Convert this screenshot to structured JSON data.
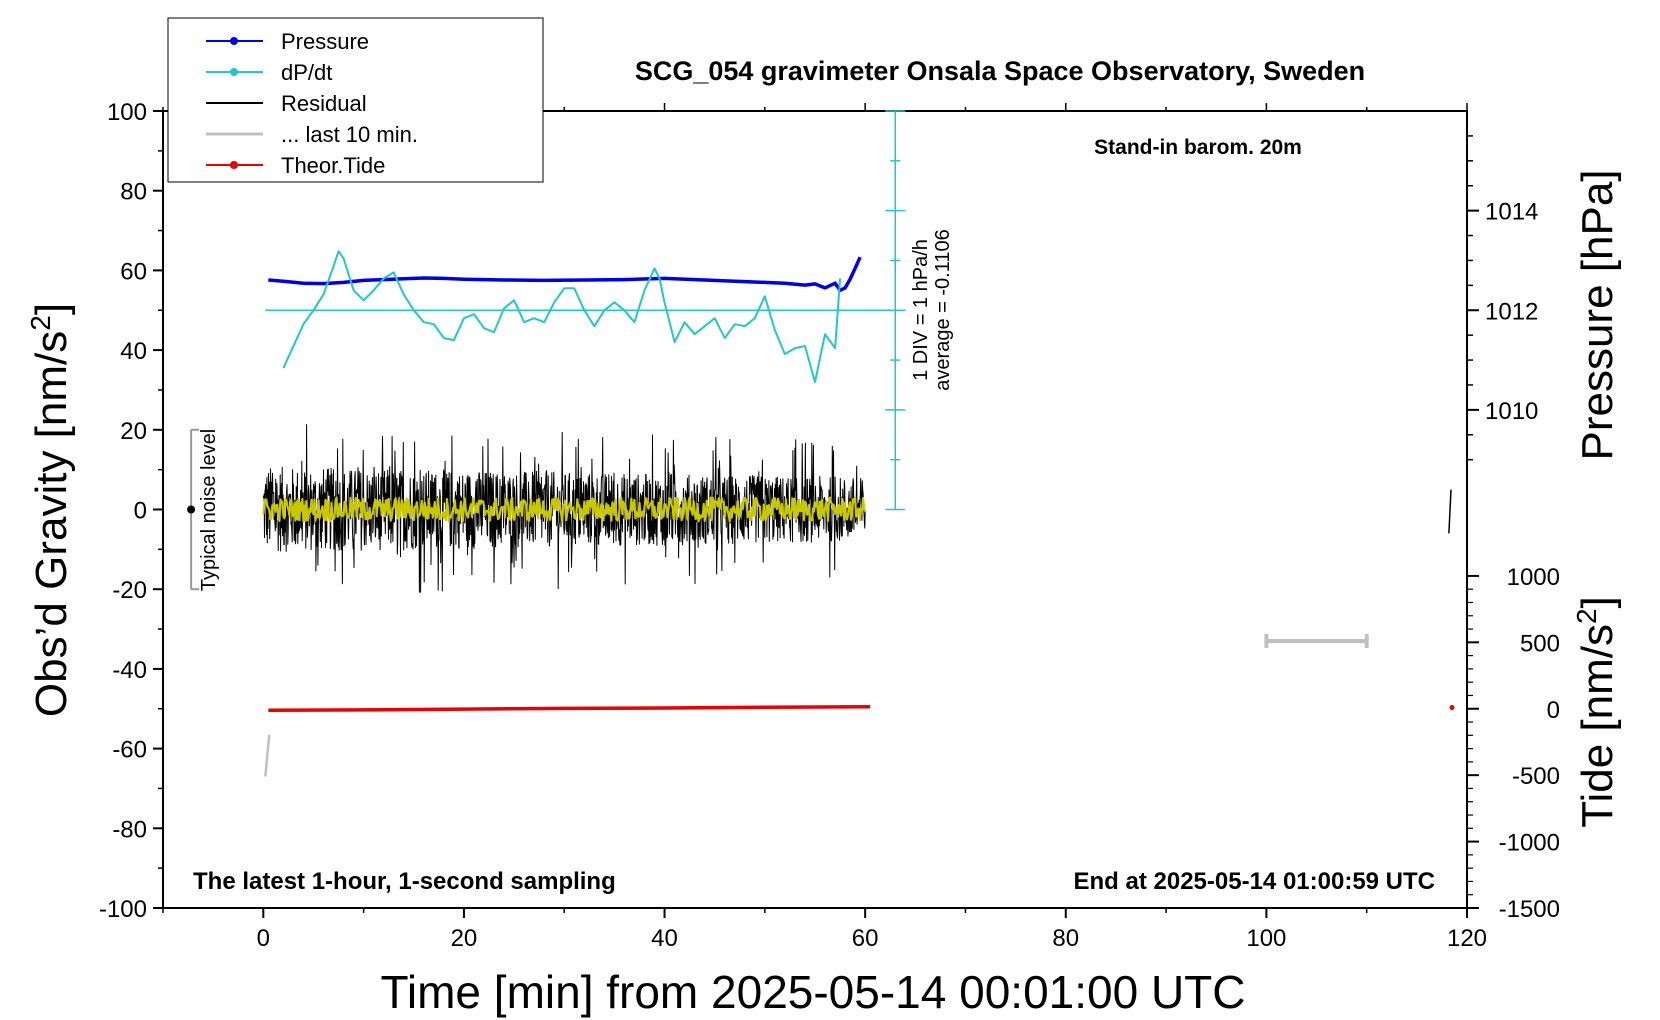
{
  "chart_data": {
    "type": "line",
    "title": "SCG_054 gravimeter Onsala Space Observatory, Sweden",
    "xlabel": "Time [min] from 2025-05-14 00:01:00 UTC",
    "ylabel_left": "Obs’d Gravity [nm/s",
    "ylabel_left_sup": "2",
    "ylabel_left_close": "]",
    "ylabel_pressure": "Pressure [hPa]",
    "ylabel_tide": "Tide [nm/s",
    "ylabel_tide_sup": "2",
    "ylabel_tide_close": "]",
    "xlim": [
      -10,
      120
    ],
    "ylim": [
      -100,
      100
    ],
    "x_ticks": [
      0,
      20,
      40,
      60,
      80,
      100,
      120
    ],
    "y_ticks": [
      -100,
      -80,
      -60,
      -40,
      -20,
      0,
      20,
      40,
      60,
      80,
      100
    ],
    "pressure_axis": {
      "ticks": [
        1010,
        1012,
        1014
      ],
      "scale_note": "1012 hPa at gravity 50, 2 hPa per 25 nm/s2"
    },
    "tide_axis": {
      "ticks": [
        -1500,
        -1000,
        -500,
        0,
        500,
        1000
      ],
      "scale_note": "0 at gravity -50, 500 per 16.7 nm/s2"
    },
    "annotations": {
      "stand_in": "Stand-in barom. 20m",
      "latest": "The latest 1-hour, 1-second sampling",
      "end_at": "End at 2025-05-14 01:00:59 UTC",
      "noise_label": "Typical noise level",
      "dpdt_div": "1 DIV = 1 hPa/h",
      "dpdt_avg": "average = -0.1106"
    },
    "legend": [
      {
        "name": "Pressure",
        "color": "#0000ee",
        "marker": true
      },
      {
        "name": "dP/dt",
        "color": "#22c8c8",
        "marker": true
      },
      {
        "name": "Residual",
        "color": "#000000",
        "marker": false
      },
      {
        "name": "... last 10 min.",
        "color": "#c0c0c0",
        "marker": false
      },
      {
        "name": "Theor.Tide",
        "color": "#ee0000",
        "marker": true
      }
    ],
    "series": [
      {
        "name": "Pressure",
        "color": "#0000ee",
        "x": [
          0.5,
          2,
          4,
          6,
          8,
          10,
          12,
          14,
          16,
          18,
          20,
          24,
          28,
          32,
          36,
          40,
          44,
          48,
          50,
          52,
          54,
          55,
          56,
          57,
          57.5,
          58,
          58.5,
          59,
          59.5
        ],
        "y": [
          57.6,
          57.3,
          56.8,
          56.7,
          57.0,
          57.5,
          57.7,
          57.9,
          58.1,
          58.0,
          57.8,
          57.6,
          57.5,
          57.6,
          57.7,
          58.0,
          57.6,
          57.2,
          57.0,
          56.8,
          56.3,
          56.6,
          55.6,
          56.8,
          55.0,
          55.6,
          57.8,
          60.5,
          63.3
        ]
      },
      {
        "name": "dP/dt",
        "color": "#22c8c8",
        "x": [
          2,
          3,
          4,
          5,
          6,
          7,
          7.5,
          8,
          9,
          10,
          11,
          12,
          13,
          14,
          15,
          16,
          17,
          18,
          19,
          20,
          21,
          22,
          23,
          24,
          25,
          26,
          27,
          28,
          29,
          30,
          31,
          32,
          33,
          34,
          35,
          36,
          37,
          38,
          39,
          39.5,
          40,
          41,
          42,
          43,
          44,
          45,
          46,
          47,
          48,
          49,
          50,
          51,
          52,
          53,
          54,
          55,
          56,
          57,
          57.5
        ],
        "y": [
          35.5,
          41,
          46.5,
          50,
          54,
          61,
          64.8,
          63,
          55,
          52.5,
          55,
          58,
          59.5,
          54,
          50,
          47,
          46.5,
          43,
          42.5,
          48,
          49,
          45.5,
          44.5,
          50.5,
          52.5,
          47,
          48,
          47,
          52,
          55.5,
          55.5,
          50,
          46,
          50,
          52,
          50,
          47,
          55,
          60.5,
          58,
          52,
          42,
          47,
          44,
          46,
          48,
          43,
          46.5,
          46,
          48,
          53.5,
          45,
          39,
          40.5,
          41,
          32,
          44,
          40.5,
          58
        ]
      },
      {
        "name": "Residual",
        "color": "#000000",
        "x_range": [
          0,
          60
        ],
        "y_center": 0,
        "y_spread": 12,
        "y_extremes": [
          -23,
          25
        ]
      },
      {
        "name": "Residual smoothed",
        "color": "#c8c800",
        "x_range": [
          0,
          60
        ],
        "y_center": 0,
        "y_spread": 3
      },
      {
        "name": "Theor.Tide",
        "color": "#ee0000",
        "x": [
          0.5,
          10,
          20,
          30,
          40,
          50,
          60.5
        ],
        "y": [
          -50.4,
          -50.3,
          -50.1,
          -49.9,
          -49.8,
          -49.6,
          -49.5
        ]
      },
      {
        "name": "... last 10 min.",
        "color": "#c0c0c0",
        "segments": [
          {
            "x": [
              0.2,
              0.6
            ],
            "y": [
              -67,
              -56.5
            ]
          }
        ]
      }
    ],
    "right_edge_marks": {
      "black_tick": {
        "x": [
          118.2,
          118.4
        ],
        "y": [
          -6,
          5
        ]
      },
      "red_dot": {
        "x": 118.5,
        "y": -49.7
      },
      "gray_scale_bar": {
        "x": [
          100,
          110
        ],
        "y": -33
      }
    }
  }
}
